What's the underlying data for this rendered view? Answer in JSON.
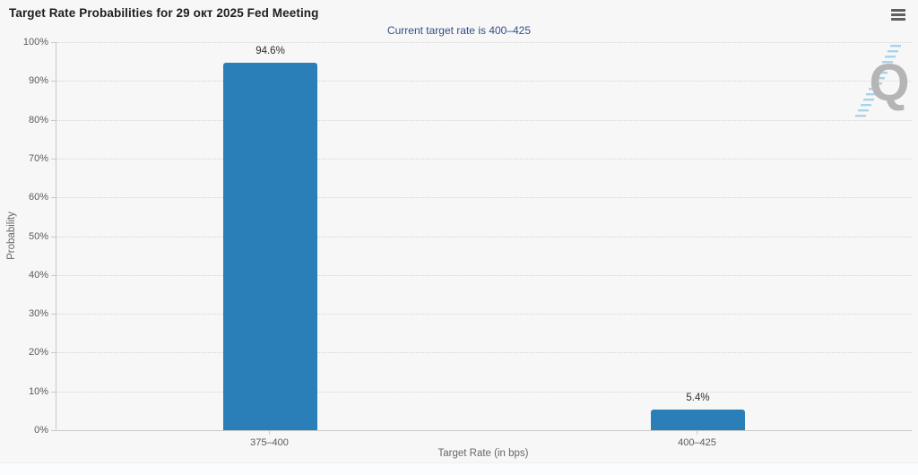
{
  "icons": {
    "context_menu": "hamburger-menu",
    "watermark": "Q-logo"
  },
  "colors": {
    "background": "#f7f7f7",
    "bar": "#2b7fb8",
    "subtitle_text": "#30508c",
    "watermark_letter": "#b5b5b5",
    "watermark_stripe": "#a9d3e9"
  },
  "chart_data": {
    "type": "bar",
    "title": "Target Rate Probabilities for 29 окт 2025 Fed Meeting",
    "subtitle": "Current target rate is 400–425",
    "categories": [
      "375–400",
      "400–425"
    ],
    "values": [
      94.6,
      5.4
    ],
    "value_labels": [
      "94.6%",
      "5.4%"
    ],
    "xlabel": "Target Rate (in bps)",
    "ylabel": "Probability",
    "ylim": [
      0,
      100
    ],
    "yticks": [
      "0%",
      "10%",
      "20%",
      "30%",
      "40%",
      "50%",
      "60%",
      "70%",
      "80%",
      "90%",
      "100%"
    ],
    "grid": "horizontal-dotted",
    "legend": "none",
    "bar_color": "#2b7fb8",
    "watermark_text": "Q"
  }
}
